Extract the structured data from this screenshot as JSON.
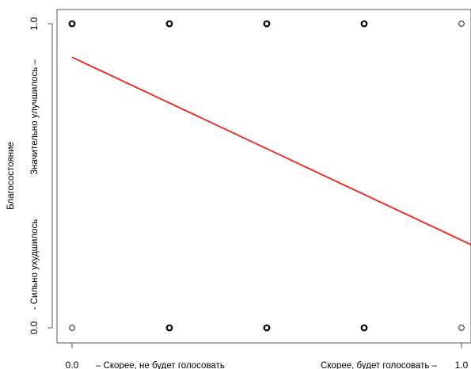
{
  "chart_data": {
    "type": "scatter",
    "xlim": [
      0,
      1
    ],
    "ylim": [
      0,
      1
    ],
    "x_ticks": [
      "0.0",
      "1.0"
    ],
    "y_ticks": [
      "0.0",
      "1.0"
    ],
    "x_tick_values": [
      0,
      1
    ],
    "y_tick_values": [
      0,
      1
    ],
    "xlabel_left": "– Скорее, не будет голосовать",
    "xlabel_right": "Скорее, будет голосовать –",
    "ylabel_title": "Благосостояние",
    "ylabel_bottom": "- Сильно ухудшилось",
    "ylabel_top": "Значительно улучшилось –",
    "grid": false,
    "points": [
      {
        "x": 0,
        "y": 1,
        "weight": "heavy"
      },
      {
        "x": 0.25,
        "y": 1,
        "weight": "heavy"
      },
      {
        "x": 0.5,
        "y": 1,
        "weight": "heavy"
      },
      {
        "x": 0.75,
        "y": 1,
        "weight": "heavy"
      },
      {
        "x": 1,
        "y": 1,
        "weight": "light"
      },
      {
        "x": 0,
        "y": 0,
        "weight": "light"
      },
      {
        "x": 0.25,
        "y": 0,
        "weight": "heavy"
      },
      {
        "x": 0.5,
        "y": 0,
        "weight": "heavy"
      },
      {
        "x": 0.75,
        "y": 0,
        "weight": "heavy"
      },
      {
        "x": 1,
        "y": 0,
        "weight": "light"
      }
    ],
    "fit_line": {
      "x": [
        0,
        1.03
      ],
      "y": [
        0.89,
        0.27
      ],
      "color": "#e8332a"
    }
  }
}
